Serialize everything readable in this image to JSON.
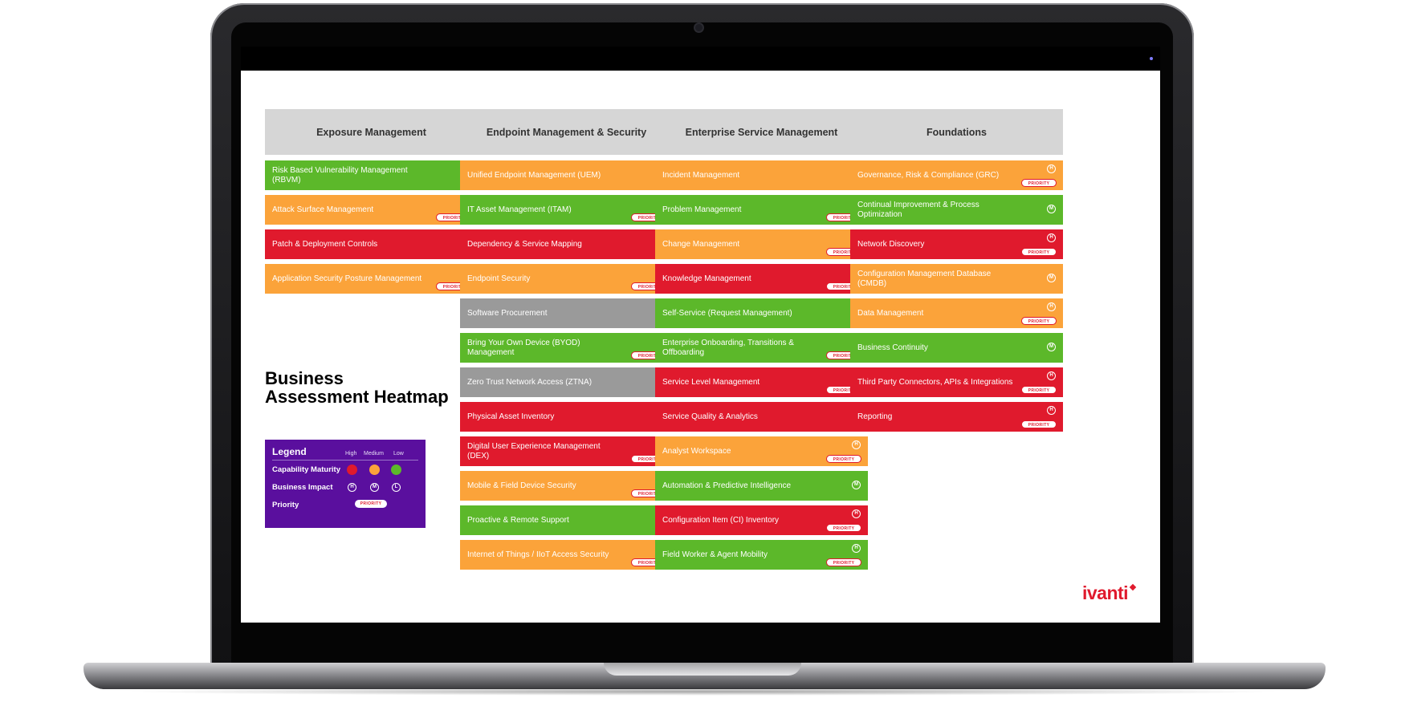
{
  "title": "Business Assessment Heatmap",
  "brand": "ivanti",
  "colors": {
    "high": "#e01a2d",
    "medium": "#fba33a",
    "low": "#5cb82a",
    "neutral": "#9a9a9a",
    "header": "#d6d6d6",
    "legend_bg": "#5a0f9e"
  },
  "priority_label": "PRIORITY",
  "columns": [
    {
      "title": "Exposure Management",
      "items": [
        {
          "label": "Risk Based Vulnerability Management (RBVM)",
          "maturity": "low",
          "impact": "L",
          "priority": false
        },
        {
          "label": "Attack Surface Management",
          "maturity": "medium",
          "impact": "H",
          "priority": true
        },
        {
          "label": "Patch & Deployment Controls",
          "maturity": "high",
          "impact": "M",
          "priority": false
        },
        {
          "label": "Application Security Posture Management",
          "maturity": "medium",
          "impact": "H",
          "priority": true
        }
      ]
    },
    {
      "title": "Endpoint Management & Security",
      "items": [
        {
          "label": "Unified Endpoint Management (UEM)",
          "maturity": "medium",
          "impact": "M",
          "priority": false
        },
        {
          "label": "IT Asset Management (ITAM)",
          "maturity": "low",
          "impact": "H",
          "priority": true
        },
        {
          "label": "Dependency & Service Mapping",
          "maturity": "high",
          "impact": "M",
          "priority": false
        },
        {
          "label": "Endpoint Security",
          "maturity": "medium",
          "impact": "H",
          "priority": true
        },
        {
          "label": "Software Procurement",
          "maturity": "neutral",
          "impact": "",
          "priority": false
        },
        {
          "label": "Bring Your Own Device (BYOD) Management",
          "maturity": "low",
          "impact": "H",
          "priority": true
        },
        {
          "label": "Zero Trust Network Access (ZTNA)",
          "maturity": "neutral",
          "impact": "",
          "priority": false
        },
        {
          "label": "Physical Asset Inventory",
          "maturity": "high",
          "impact": "M",
          "priority": false
        },
        {
          "label": "Digital User Experience Management (DEX)",
          "maturity": "high",
          "impact": "H",
          "priority": true
        },
        {
          "label": "Mobile & Field Device Security",
          "maturity": "medium",
          "impact": "H",
          "priority": true
        },
        {
          "label": "Proactive & Remote Support",
          "maturity": "low",
          "impact": "M",
          "priority": false
        },
        {
          "label": "Internet of Things / IIoT Access Security",
          "maturity": "medium",
          "impact": "H",
          "priority": true
        }
      ]
    },
    {
      "title": "Enterprise Service Management",
      "items": [
        {
          "label": "Incident Management",
          "maturity": "medium",
          "impact": "M",
          "priority": false
        },
        {
          "label": "Problem Management",
          "maturity": "low",
          "impact": "H",
          "priority": true
        },
        {
          "label": "Change Management",
          "maturity": "medium",
          "impact": "H",
          "priority": true
        },
        {
          "label": "Knowledge Management",
          "maturity": "high",
          "impact": "H",
          "priority": true
        },
        {
          "label": "Self-Service (Request Management)",
          "maturity": "low",
          "impact": "M",
          "priority": false
        },
        {
          "label": "Enterprise Onboarding, Transitions & Offboarding",
          "maturity": "low",
          "impact": "H",
          "priority": true
        },
        {
          "label": "Service Level Management",
          "maturity": "high",
          "impact": "H",
          "priority": true
        },
        {
          "label": "Service Quality & Analytics",
          "maturity": "high",
          "impact": "M",
          "priority": false
        },
        {
          "label": "Analyst Workspace",
          "maturity": "medium",
          "impact": "H",
          "priority": true
        },
        {
          "label": "Automation & Predictive Intelligence",
          "maturity": "low",
          "impact": "M",
          "priority": false
        },
        {
          "label": "Configuration Item (CI) Inventory",
          "maturity": "high",
          "impact": "H",
          "priority": true
        },
        {
          "label": "Field Worker & Agent Mobility",
          "maturity": "low",
          "impact": "H",
          "priority": true
        }
      ]
    },
    {
      "title": "Foundations",
      "items": [
        {
          "label": "Governance, Risk & Compliance (GRC)",
          "maturity": "medium",
          "impact": "H",
          "priority": true
        },
        {
          "label": "Continual Improvement & Process Optimization",
          "maturity": "low",
          "impact": "M",
          "priority": false
        },
        {
          "label": "Network Discovery",
          "maturity": "high",
          "impact": "H",
          "priority": true
        },
        {
          "label": "Configuration Management Database (CMDB)",
          "maturity": "medium",
          "impact": "M",
          "priority": false
        },
        {
          "label": "Data Management",
          "maturity": "medium",
          "impact": "H",
          "priority": true
        },
        {
          "label": "Business Continuity",
          "maturity": "low",
          "impact": "M",
          "priority": false
        },
        {
          "label": "Third Party Connectors, APIs & Integrations",
          "maturity": "high",
          "impact": "H",
          "priority": true
        },
        {
          "label": "Reporting",
          "maturity": "high",
          "impact": "H",
          "priority": true
        }
      ]
    }
  ],
  "legend": {
    "title": "Legend",
    "levels": [
      "High",
      "Medium",
      "Low"
    ],
    "capability_maturity": "Capability Maturity",
    "business_impact": "Business Impact",
    "impact_letters": [
      "H",
      "M",
      "L"
    ],
    "priority": "Priority"
  }
}
